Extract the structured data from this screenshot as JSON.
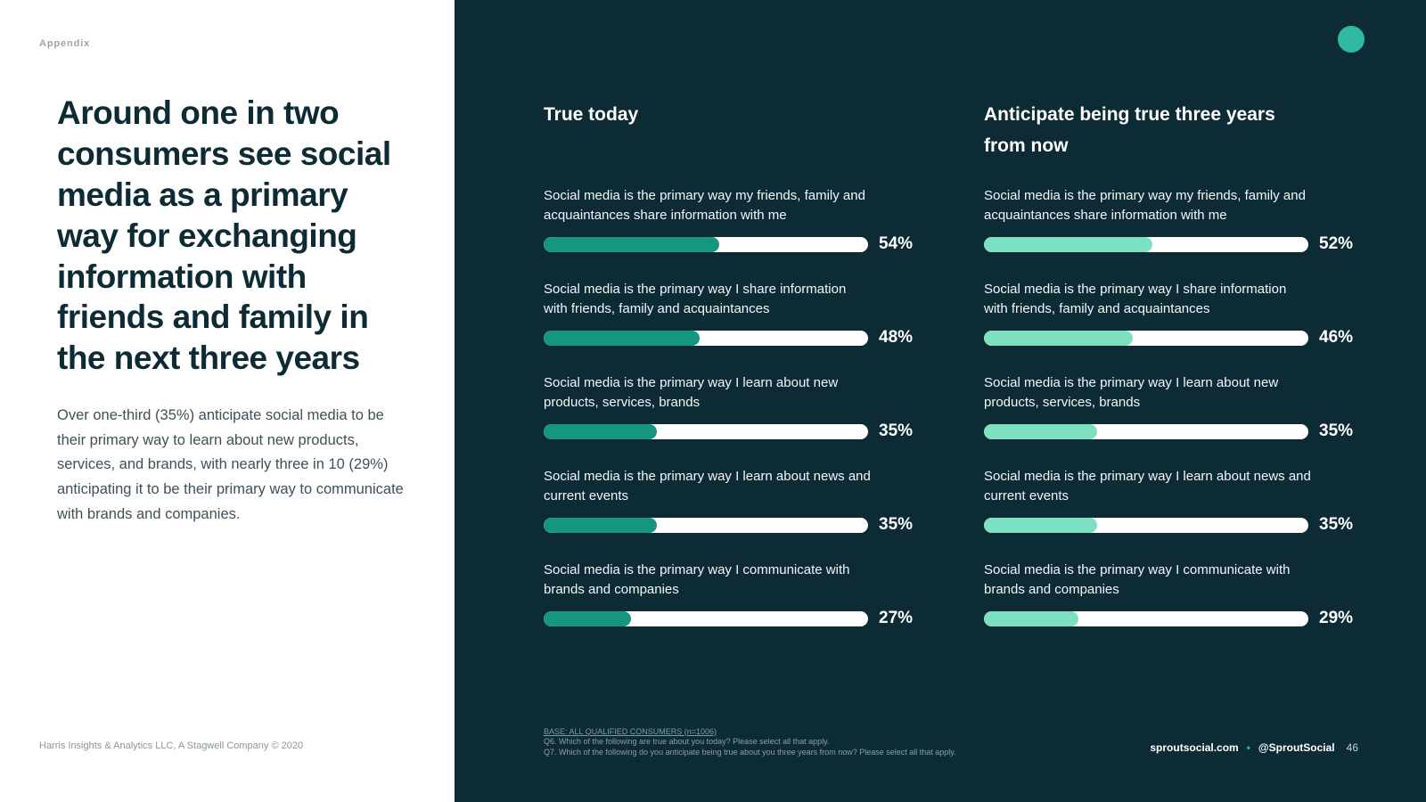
{
  "page": {
    "eyebrow": "Appendix",
    "heading": "Around one in two consumers see social media as a primary way for exchanging information with friends and family in the next three years",
    "body": "Over one-third (35%) anticipate social media to be their primary way to learn about new products, services, and brands, with nearly three in 10 (29%) anticipating it to be their primary way to communicate with brands and companies.",
    "footer_left": "Harris Insights & Analytics LLC, A Stagwell Company © 2020"
  },
  "chart_data": {
    "type": "bar",
    "categories": [
      "Social media is the primary way my friends, family and acquaintances share information with me",
      "Social media is the primary way I share information with friends, family and acquaintances",
      "Social media is the primary way I learn about new products, services, brands",
      "Social media is the primary way I learn about news and current events",
      "Social media is the primary way I communicate with brands and companies"
    ],
    "series": [
      {
        "name": "True today",
        "values": [
          54,
          48,
          35,
          35,
          27
        ],
        "display": [
          "54%",
          "48%",
          "35%",
          "35%",
          "27%"
        ],
        "color": "#17967f"
      },
      {
        "name": "Anticipate being true three years from now",
        "values": [
          52,
          46,
          35,
          35,
          29
        ],
        "display": [
          "52%",
          "46%",
          "35%",
          "35%",
          "29%"
        ],
        "color": "#7de0c0"
      }
    ],
    "xlim": [
      0,
      100
    ],
    "track_color": "#ffffff",
    "background": "#0d2b35",
    "legend_position": "column-titles",
    "grid": false
  },
  "footnotes": {
    "base": "BASE: ALL QUALIFIED CONSUMERS (n=1006)",
    "q6": "Q6. Which of the following are true about you today? Please select all that apply.",
    "q7": "Q7. Which of the following do you anticipate being true about you three years from now? Please select all that apply."
  },
  "footer_right": {
    "site": "sproutsocial.com",
    "separator": "•",
    "handle": "@SproutSocial",
    "page": "46"
  }
}
